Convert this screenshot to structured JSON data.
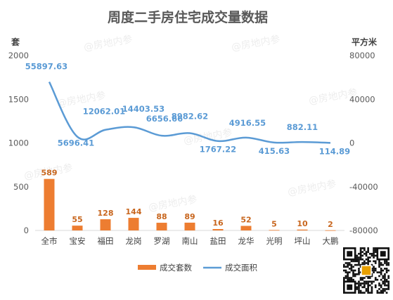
{
  "chart_data": {
    "type": "bar+line",
    "title": "周度二手房住宅成交量数据",
    "categories": [
      "全市",
      "宝安",
      "福田",
      "龙岗",
      "罗湖",
      "南山",
      "盐田",
      "龙华",
      "光明",
      "坪山",
      "大鹏"
    ],
    "series": [
      {
        "name": "成交套数",
        "type": "bar",
        "axis": "left",
        "color": "#ed7d31",
        "values": [
          589,
          55,
          128,
          144,
          88,
          89,
          16,
          52,
          5,
          10,
          2
        ],
        "labels": [
          "589",
          "55",
          "128",
          "144",
          "88",
          "89",
          "16",
          "52",
          "5",
          "10",
          "2"
        ]
      },
      {
        "name": "成交面积",
        "type": "line",
        "axis": "right",
        "color": "#5b9bd5",
        "values": [
          55897.63,
          5696.41,
          12062.01,
          14403.53,
          6656.66,
          8982.62,
          1767.22,
          4916.55,
          415.63,
          882.11,
          114.89
        ],
        "labels": [
          "55897.63",
          "5696.41",
          "12062.01",
          "14403.53",
          "6656.66",
          "8982.62",
          "1767.22",
          "4916.55",
          "415.63",
          "882.11",
          "114.89"
        ]
      }
    ],
    "y_left": {
      "unit": "套",
      "ylim": [
        0,
        2000
      ],
      "ticks": [
        "0",
        "500",
        "1000",
        "1500",
        "2000"
      ],
      "tick_values": [
        0,
        500,
        1000,
        1500,
        2000
      ]
    },
    "y_right": {
      "unit": "平方米",
      "ylim": [
        -80000,
        80000
      ],
      "ticks": [
        "-80000",
        "-40000",
        "0",
        "40000",
        "80000"
      ],
      "tick_values": [
        -80000,
        -40000,
        0,
        40000,
        80000
      ]
    },
    "grid": false,
    "legend": {
      "position": "bottom",
      "entries": [
        "成交套数",
        "成交面积"
      ]
    }
  },
  "watermark": "@房地内参",
  "qr_code": "qr-code"
}
